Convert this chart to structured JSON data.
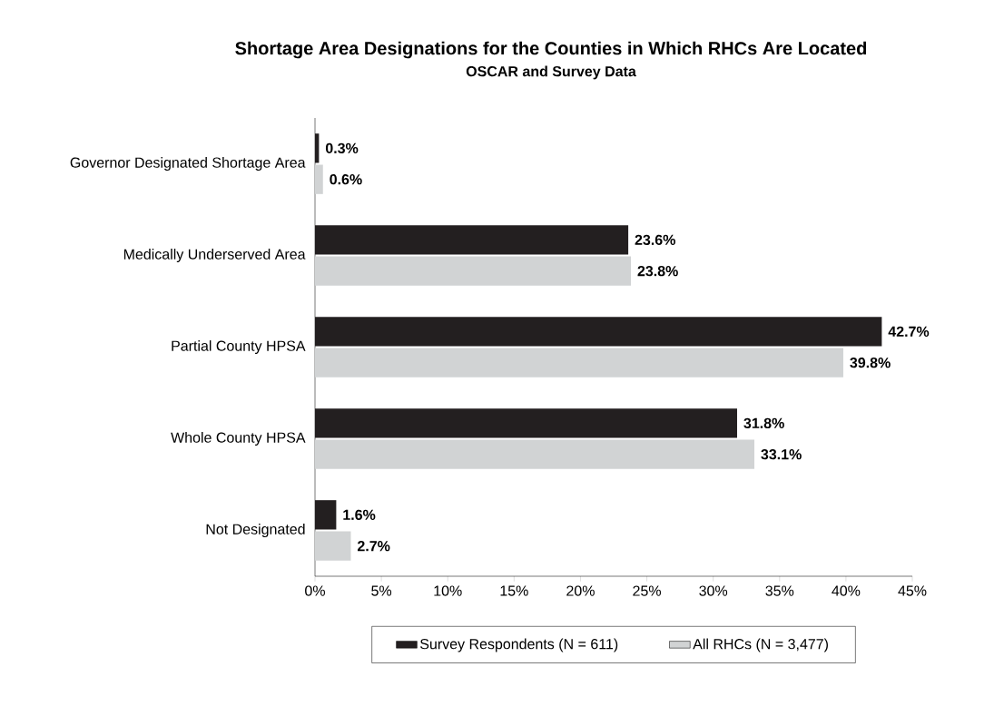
{
  "chart_data": {
    "type": "bar",
    "orientation": "horizontal",
    "title": "Shortage Area Designations for the Counties in Which RHCs Are Located",
    "subtitle": "OSCAR and Survey Data",
    "categories": [
      "Governor Designated Shortage Area",
      "Medically Underserved Area",
      "Partial County HPSA",
      "Whole County HPSA",
      "Not Designated"
    ],
    "series": [
      {
        "name": "Survey Respondents (N = 611)",
        "color": "#231f20",
        "values": [
          0.3,
          23.6,
          42.7,
          31.8,
          1.6
        ],
        "value_labels": [
          "0.3%",
          "23.6%",
          "42.7%",
          "31.8%",
          "1.6%"
        ]
      },
      {
        "name": "All RHCs (N = 3,477)",
        "color": "#d1d3d4",
        "values": [
          0.6,
          23.8,
          39.8,
          33.1,
          2.7
        ],
        "value_labels": [
          "0.6%",
          "23.8%",
          "39.8%",
          "33.1%",
          "2.7%"
        ]
      }
    ],
    "xlim": [
      0,
      45
    ],
    "xticks": [
      {
        "value": 0,
        "label": "0%"
      },
      {
        "value": 5,
        "label": "5%"
      },
      {
        "value": 10,
        "label": "10%"
      },
      {
        "value": 15,
        "label": "15%"
      },
      {
        "value": 20,
        "label": "20%"
      },
      {
        "value": 25,
        "label": "25%"
      },
      {
        "value": 30,
        "label": "30%"
      },
      {
        "value": 35,
        "label": "35%"
      },
      {
        "value": 40,
        "label": "40%"
      },
      {
        "value": 45,
        "label": "45%"
      }
    ],
    "grid": false,
    "legend": "bottom"
  }
}
